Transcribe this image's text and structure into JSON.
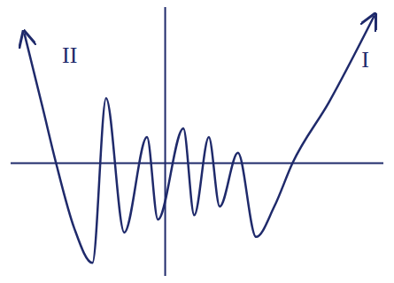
{
  "chart_data": {
    "type": "line",
    "x": [
      -15.5,
      -13.5,
      -12,
      -10,
      -8,
      -6.5,
      -4.5,
      -2,
      -0.8,
      2,
      3.2,
      4.8,
      6,
      8,
      10,
      12,
      14,
      18,
      23
    ],
    "values": [
      15,
      6.5,
      0,
      -7.5,
      -11.5,
      7.5,
      -8,
      3,
      -6.5,
      4,
      -6,
      3,
      -5,
      1.2,
      -8.5,
      -5,
      0,
      7,
      17
    ],
    "xlim": [
      -17,
      24
    ],
    "ylim": [
      -13,
      18
    ],
    "tick_labels": false,
    "grid": false,
    "color": "#1f2a6b",
    "annotations": [
      {
        "text": "II",
        "x": -10.5,
        "y": 12.5
      },
      {
        "text": "I",
        "x": 22,
        "y": 12
      }
    ]
  }
}
